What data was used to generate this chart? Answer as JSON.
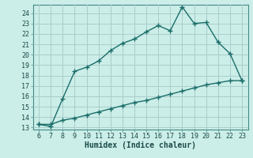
{
  "xlabel": "Humidex (Indice chaleur)",
  "bg_color": "#cceee8",
  "grid_color": "#aacccc",
  "line_color": "#1a6e6a",
  "xlim": [
    5.5,
    23.5
  ],
  "ylim": [
    12.8,
    24.8
  ],
  "xticks": [
    6,
    7,
    8,
    9,
    10,
    11,
    12,
    13,
    14,
    15,
    16,
    17,
    18,
    19,
    20,
    21,
    22,
    23
  ],
  "yticks": [
    13,
    14,
    15,
    16,
    17,
    18,
    19,
    20,
    21,
    22,
    23,
    24
  ],
  "curve1_x": [
    6,
    7,
    8,
    9,
    10,
    11,
    12,
    13,
    14,
    15,
    16,
    17,
    18,
    19,
    20,
    21,
    22,
    23
  ],
  "curve1_y": [
    13.3,
    13.1,
    15.8,
    18.4,
    18.8,
    19.4,
    20.4,
    21.1,
    21.5,
    22.2,
    22.8,
    22.3,
    24.6,
    23.0,
    23.1,
    21.2,
    20.1,
    17.5
  ],
  "curve2_x": [
    6,
    7,
    8,
    9,
    10,
    11,
    12,
    13,
    14,
    15,
    16,
    17,
    18,
    19,
    20,
    21,
    22,
    23
  ],
  "curve2_y": [
    13.3,
    13.3,
    13.7,
    13.9,
    14.2,
    14.5,
    14.8,
    15.1,
    15.4,
    15.6,
    15.9,
    16.2,
    16.5,
    16.8,
    17.1,
    17.3,
    17.5,
    17.5
  ],
  "marker_style": "+",
  "marker_size": 4,
  "line_width": 1.0,
  "font_size": 6,
  "xlabel_fontsize": 7
}
